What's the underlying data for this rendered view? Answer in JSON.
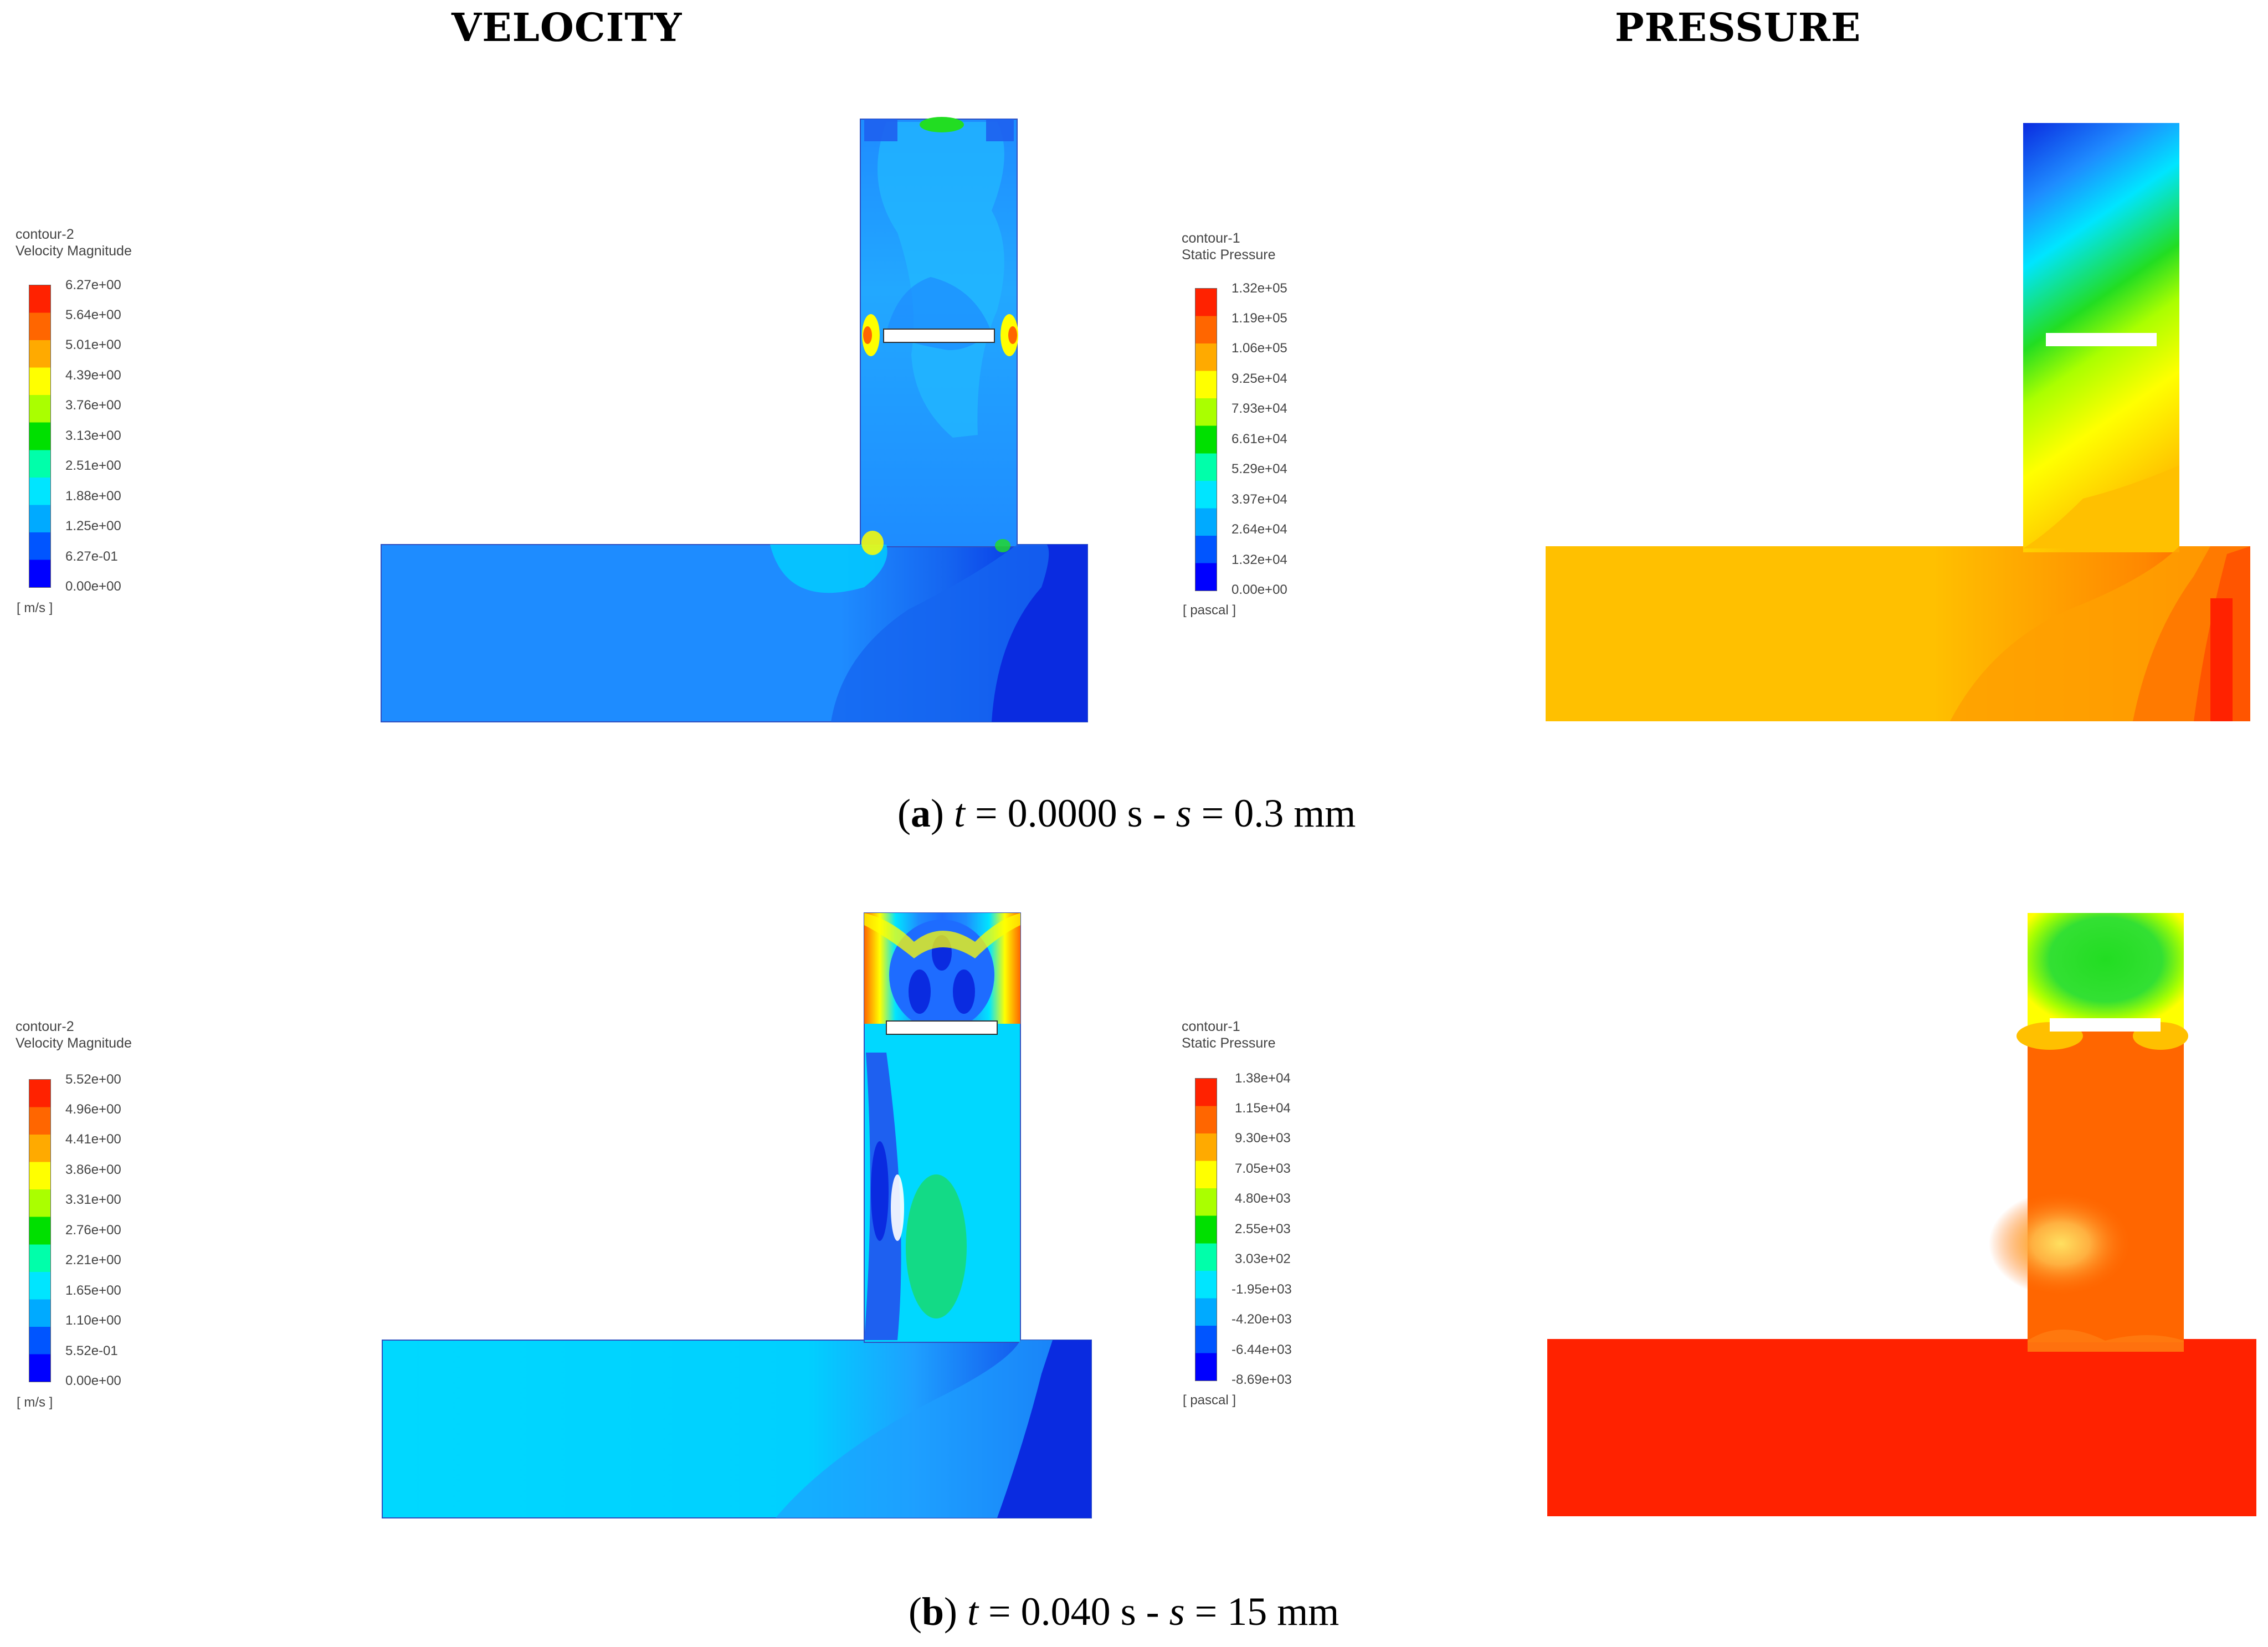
{
  "headers": {
    "velocity": "VELOCITY",
    "pressure": "PRESSURE"
  },
  "panels": [
    {
      "caption": {
        "letter": "a",
        "t_label": "t",
        "t_value": " = 0.0000 s - ",
        "s_label": "s",
        "s_value": " = 0.3 mm"
      },
      "velocity_legend": {
        "name": "contour-2",
        "variable": "Velocity Magnitude",
        "unit": "[ m/s ]",
        "ticks": [
          "6.27e+00",
          "5.64e+00",
          "5.01e+00",
          "4.39e+00",
          "3.76e+00",
          "3.13e+00",
          "2.51e+00",
          "1.88e+00",
          "1.25e+00",
          "6.27e-01",
          "0.00e+00"
        ]
      },
      "pressure_legend": {
        "name": "contour-1",
        "variable": "Static Pressure",
        "unit": "[ pascal ]",
        "ticks": [
          "1.32e+05",
          "1.19e+05",
          "1.06e+05",
          "9.25e+04",
          "7.93e+04",
          "6.61e+04",
          "5.29e+04",
          "3.97e+04",
          "2.64e+04",
          "1.32e+04",
          "0.00e+00"
        ]
      }
    },
    {
      "caption": {
        "letter": "b",
        "t_label": "t",
        "t_value": " = 0.040 s - ",
        "s_label": "s",
        "s_value": " = 15 mm"
      },
      "velocity_legend": {
        "name": "contour-2",
        "variable": "Velocity Magnitude",
        "unit": "[ m/s ]",
        "ticks": [
          "5.52e+00",
          "4.96e+00",
          "4.41e+00",
          "3.86e+00",
          "3.31e+00",
          "2.76e+00",
          "2.21e+00",
          "1.65e+00",
          "1.10e+00",
          "5.52e-01",
          "0.00e+00"
        ]
      },
      "pressure_legend": {
        "name": "contour-1",
        "variable": "Static Pressure",
        "unit": "[ pascal ]",
        "ticks": [
          "1.38e+04",
          "1.15e+04",
          "9.30e+03",
          "7.05e+03",
          "4.80e+03",
          "2.55e+03",
          "3.03e+02",
          "-1.95e+03",
          "-4.20e+03",
          "-6.44e+03",
          "-8.69e+03"
        ]
      }
    }
  ],
  "colors": {
    "colormap": [
      "#0000ff",
      "#0055ff",
      "#00aaff",
      "#00e5ff",
      "#00ffaa",
      "#00e000",
      "#aaff00",
      "#ffff00",
      "#ffaa00",
      "#ff6600",
      "#ff2200"
    ],
    "deep_blue": "#0a2be0",
    "mid_blue": "#1e8cff",
    "light_blue": "#00c8ff",
    "cyan": "#00e5ff",
    "green": "#22dd22",
    "yellow": "#ffff00",
    "orange_yellow": "#ffc000",
    "orange": "#ff8800",
    "red_orange": "#ff5500",
    "red": "#ff2200"
  }
}
